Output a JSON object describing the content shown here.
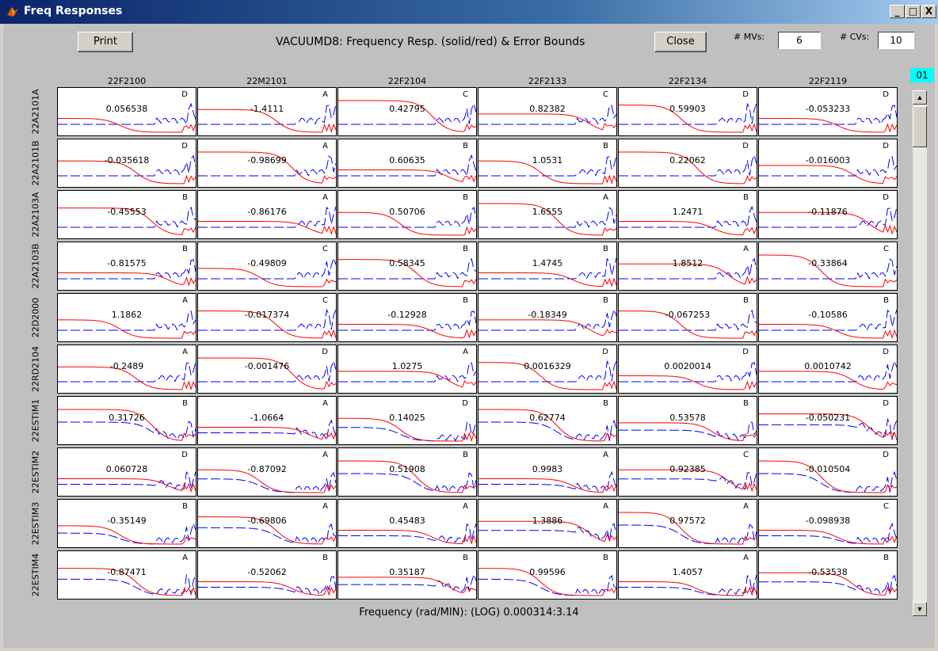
{
  "window": {
    "title": "Freq Responses",
    "minimize": "_",
    "maximize": "□",
    "close": "X"
  },
  "toolbar": {
    "print_label": "Print",
    "close_label": "Close",
    "title": "VACUUMD8: Frequency Resp. (solid/red) & Error Bounds",
    "mvs_label": "# MVs:",
    "mvs_value": "6",
    "cvs_label": "# CVs:",
    "cvs_value": "10",
    "page_indicator": "01"
  },
  "columns": [
    "22F2100",
    "22M2101",
    "22F2104",
    "22F2133",
    "22F2134",
    "22F2119"
  ],
  "rows": [
    "22A2101A",
    "22A2101B",
    "22A2103A",
    "22A2103B",
    "22D2000",
    "22RD2104",
    "22ESTIM1",
    "22ESTIM2",
    "22ESTIM3",
    "22ESTIM4"
  ],
  "cells": [
    [
      {
        "v": "0.056538",
        "g": "D"
      },
      {
        "v": "-1.4111",
        "g": "A"
      },
      {
        "v": "0.42795",
        "g": "C"
      },
      {
        "v": "0.82382",
        "g": "C"
      },
      {
        "v": "0.59903",
        "g": "D"
      },
      {
        "v": "-0.053233",
        "g": "D"
      }
    ],
    [
      {
        "v": "-0.035618",
        "g": "D"
      },
      {
        "v": "-0.98699",
        "g": "A"
      },
      {
        "v": "0.60635",
        "g": "B"
      },
      {
        "v": "1.0531",
        "g": "B"
      },
      {
        "v": "0.22062",
        "g": "D"
      },
      {
        "v": "-0.016003",
        "g": "D"
      }
    ],
    [
      {
        "v": "-0.45553",
        "g": "B"
      },
      {
        "v": "-0.86176",
        "g": "A"
      },
      {
        "v": "0.50706",
        "g": "B"
      },
      {
        "v": "1.6555",
        "g": "A"
      },
      {
        "v": "1.2471",
        "g": "B"
      },
      {
        "v": "-0.11876",
        "g": "D"
      }
    ],
    [
      {
        "v": "-0.81575",
        "g": "B"
      },
      {
        "v": "-0.49809",
        "g": "C"
      },
      {
        "v": "0.58345",
        "g": "B"
      },
      {
        "v": "1.4745",
        "g": "B"
      },
      {
        "v": "1.8512",
        "g": "A"
      },
      {
        "v": "-0.33864",
        "g": "C"
      }
    ],
    [
      {
        "v": "1.1862",
        "g": "A"
      },
      {
        "v": "-0.017374",
        "g": "C"
      },
      {
        "v": "-0.12928",
        "g": "B"
      },
      {
        "v": "-0.18349",
        "g": "B"
      },
      {
        "v": "-0.067253",
        "g": "B"
      },
      {
        "v": "-0.10586",
        "g": "B"
      }
    ],
    [
      {
        "v": "-0.2489",
        "g": "A"
      },
      {
        "v": "-0.001476",
        "g": "D"
      },
      {
        "v": "1.0275",
        "g": "A"
      },
      {
        "v": "0.0016329",
        "g": "D"
      },
      {
        "v": "0.0020014",
        "g": "D"
      },
      {
        "v": "0.0010742",
        "g": "D"
      }
    ],
    [
      {
        "v": "0.31726",
        "g": "B"
      },
      {
        "v": "-1.0664",
        "g": "A"
      },
      {
        "v": "0.14025",
        "g": "D"
      },
      {
        "v": "0.62774",
        "g": "B"
      },
      {
        "v": "0.53578",
        "g": "B"
      },
      {
        "v": "-0.050231",
        "g": "D"
      }
    ],
    [
      {
        "v": "0.060728",
        "g": "D"
      },
      {
        "v": "-0.87092",
        "g": "A"
      },
      {
        "v": "0.51908",
        "g": "B"
      },
      {
        "v": "0.9983",
        "g": "A"
      },
      {
        "v": "0.92385",
        "g": "C"
      },
      {
        "v": "-0.010504",
        "g": "D"
      }
    ],
    [
      {
        "v": "-0.35149",
        "g": "B"
      },
      {
        "v": "-0.69806",
        "g": "A"
      },
      {
        "v": "0.45483",
        "g": "A"
      },
      {
        "v": "1.3886",
        "g": "A"
      },
      {
        "v": "0.97572",
        "g": "A"
      },
      {
        "v": "-0.098938",
        "g": "C"
      }
    ],
    [
      {
        "v": "-0.87471",
        "g": "A"
      },
      {
        "v": "-0.52062",
        "g": "B"
      },
      {
        "v": "0.35187",
        "g": "B"
      },
      {
        "v": "0.99596",
        "g": "B"
      },
      {
        "v": "1.4057",
        "g": "A"
      },
      {
        "v": "-0.53538",
        "g": "B"
      }
    ]
  ],
  "footer": {
    "frequency_label": "Frequency (rad/MIN):  (LOG) 0.000314:3.14"
  },
  "colors": {
    "response": "#ff0000",
    "error_bound": "#0000ff",
    "page_badge": "#00ffff"
  }
}
